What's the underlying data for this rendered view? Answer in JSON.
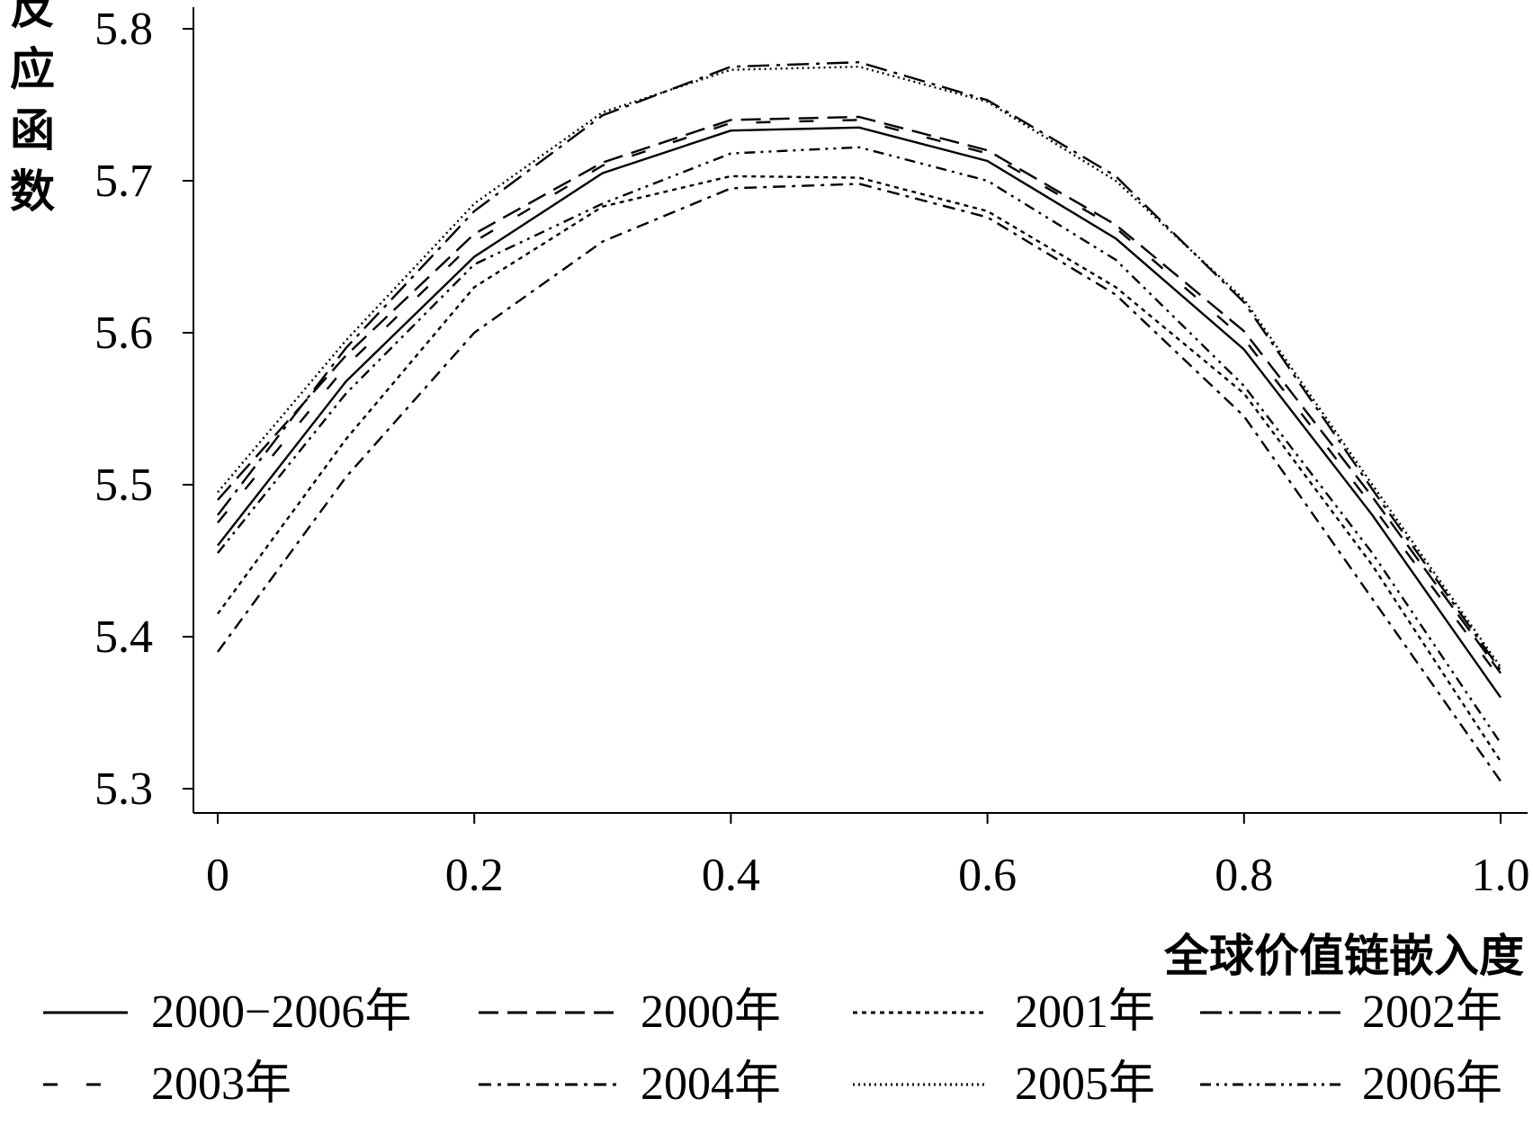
{
  "chart_data": {
    "type": "line",
    "title": "",
    "xlabel": "全球价值链嵌入度",
    "ylabel": "剂量反应函数",
    "xlim": [
      0,
      1.0
    ],
    "ylim": [
      5.3,
      5.8
    ],
    "x_ticks": [
      0,
      0.2,
      0.4,
      0.6,
      0.8,
      1.0
    ],
    "x_tick_labels": [
      "0",
      "0.2",
      "0.4",
      "0.6",
      "0.8",
      "1.0"
    ],
    "y_ticks": [
      5.3,
      5.4,
      5.5,
      5.6,
      5.7,
      5.8
    ],
    "y_tick_labels": [
      "5.3",
      "5.4",
      "5.5",
      "5.6",
      "5.7",
      "5.8"
    ],
    "grid": false,
    "legend_position": "bottom",
    "x": [
      0,
      0.1,
      0.2,
      0.3,
      0.4,
      0.5,
      0.6,
      0.7,
      0.8,
      0.9,
      1.0
    ],
    "series": [
      {
        "name": "2000−2006年",
        "dash": "solid",
        "values": [
          5.46,
          5.568,
          5.65,
          5.705,
          5.733,
          5.735,
          5.713,
          5.662,
          5.589,
          5.48,
          5.36
        ]
      },
      {
        "name": "2000年",
        "dash": "dash",
        "values": [
          5.49,
          5.585,
          5.665,
          5.712,
          5.74,
          5.742,
          5.72,
          5.671,
          5.601,
          5.492,
          5.376
        ]
      },
      {
        "name": "2001年",
        "dash": "dot",
        "values": [
          5.415,
          5.53,
          5.63,
          5.683,
          5.703,
          5.702,
          5.68,
          5.63,
          5.56,
          5.447,
          5.318
        ]
      },
      {
        "name": "2002年",
        "dash": "dashdot",
        "values": [
          5.48,
          5.59,
          5.68,
          5.743,
          5.775,
          5.778,
          5.753,
          5.703,
          5.62,
          5.497,
          5.378
        ]
      },
      {
        "name": "2003年",
        "dash": "longdash",
        "values": [
          5.475,
          5.578,
          5.66,
          5.71,
          5.738,
          5.74,
          5.718,
          5.669,
          5.596,
          5.486,
          5.372
        ]
      },
      {
        "name": "2004年",
        "dash": "dashdot2",
        "values": [
          5.39,
          5.505,
          5.6,
          5.66,
          5.695,
          5.698,
          5.676,
          5.625,
          5.545,
          5.425,
          5.305
        ]
      },
      {
        "name": "2005年",
        "dash": "dense-dot",
        "values": [
          5.495,
          5.595,
          5.685,
          5.745,
          5.773,
          5.775,
          5.752,
          5.7,
          5.622,
          5.5,
          5.38
        ]
      },
      {
        "name": "2006年",
        "dash": "dashdotdot",
        "values": [
          5.455,
          5.56,
          5.645,
          5.685,
          5.718,
          5.722,
          5.7,
          5.648,
          5.565,
          5.455,
          5.33
        ]
      }
    ]
  }
}
